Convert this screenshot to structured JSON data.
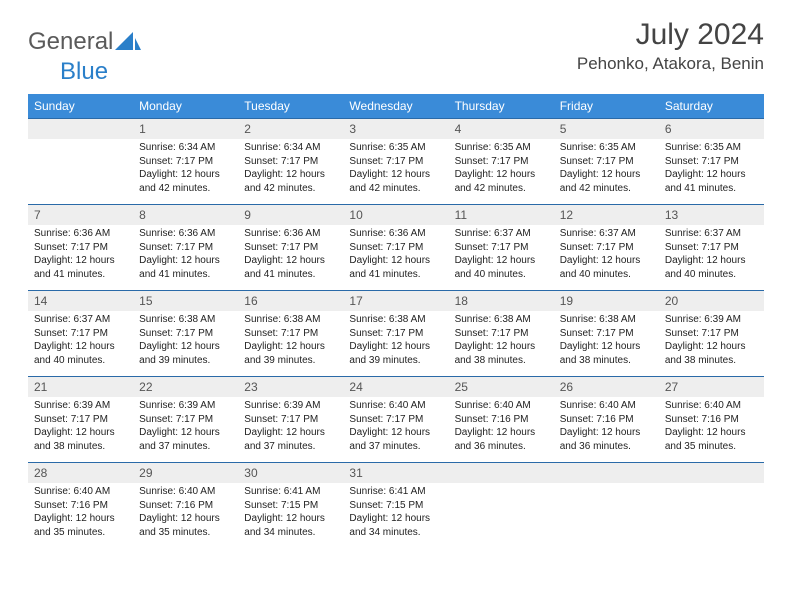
{
  "brand": {
    "part1": "General",
    "part2": "Blue"
  },
  "title": "July 2024",
  "location": "Pehonko, Atakora, Benin",
  "colors": {
    "header_bg": "#3a8bd8",
    "header_text": "#ffffff",
    "row_border": "#2a6aa8",
    "daynum_bg": "#eeeeee",
    "text": "#222222",
    "brand_grey": "#5a5a5a",
    "brand_blue": "#2a7fc9"
  },
  "weekdays": [
    "Sunday",
    "Monday",
    "Tuesday",
    "Wednesday",
    "Thursday",
    "Friday",
    "Saturday"
  ],
  "weeks": [
    [
      {
        "n": "",
        "sr": "",
        "ss": "",
        "dl": ""
      },
      {
        "n": "1",
        "sr": "Sunrise: 6:34 AM",
        "ss": "Sunset: 7:17 PM",
        "dl": "Daylight: 12 hours and 42 minutes."
      },
      {
        "n": "2",
        "sr": "Sunrise: 6:34 AM",
        "ss": "Sunset: 7:17 PM",
        "dl": "Daylight: 12 hours and 42 minutes."
      },
      {
        "n": "3",
        "sr": "Sunrise: 6:35 AM",
        "ss": "Sunset: 7:17 PM",
        "dl": "Daylight: 12 hours and 42 minutes."
      },
      {
        "n": "4",
        "sr": "Sunrise: 6:35 AM",
        "ss": "Sunset: 7:17 PM",
        "dl": "Daylight: 12 hours and 42 minutes."
      },
      {
        "n": "5",
        "sr": "Sunrise: 6:35 AM",
        "ss": "Sunset: 7:17 PM",
        "dl": "Daylight: 12 hours and 42 minutes."
      },
      {
        "n": "6",
        "sr": "Sunrise: 6:35 AM",
        "ss": "Sunset: 7:17 PM",
        "dl": "Daylight: 12 hours and 41 minutes."
      }
    ],
    [
      {
        "n": "7",
        "sr": "Sunrise: 6:36 AM",
        "ss": "Sunset: 7:17 PM",
        "dl": "Daylight: 12 hours and 41 minutes."
      },
      {
        "n": "8",
        "sr": "Sunrise: 6:36 AM",
        "ss": "Sunset: 7:17 PM",
        "dl": "Daylight: 12 hours and 41 minutes."
      },
      {
        "n": "9",
        "sr": "Sunrise: 6:36 AM",
        "ss": "Sunset: 7:17 PM",
        "dl": "Daylight: 12 hours and 41 minutes."
      },
      {
        "n": "10",
        "sr": "Sunrise: 6:36 AM",
        "ss": "Sunset: 7:17 PM",
        "dl": "Daylight: 12 hours and 41 minutes."
      },
      {
        "n": "11",
        "sr": "Sunrise: 6:37 AM",
        "ss": "Sunset: 7:17 PM",
        "dl": "Daylight: 12 hours and 40 minutes."
      },
      {
        "n": "12",
        "sr": "Sunrise: 6:37 AM",
        "ss": "Sunset: 7:17 PM",
        "dl": "Daylight: 12 hours and 40 minutes."
      },
      {
        "n": "13",
        "sr": "Sunrise: 6:37 AM",
        "ss": "Sunset: 7:17 PM",
        "dl": "Daylight: 12 hours and 40 minutes."
      }
    ],
    [
      {
        "n": "14",
        "sr": "Sunrise: 6:37 AM",
        "ss": "Sunset: 7:17 PM",
        "dl": "Daylight: 12 hours and 40 minutes."
      },
      {
        "n": "15",
        "sr": "Sunrise: 6:38 AM",
        "ss": "Sunset: 7:17 PM",
        "dl": "Daylight: 12 hours and 39 minutes."
      },
      {
        "n": "16",
        "sr": "Sunrise: 6:38 AM",
        "ss": "Sunset: 7:17 PM",
        "dl": "Daylight: 12 hours and 39 minutes."
      },
      {
        "n": "17",
        "sr": "Sunrise: 6:38 AM",
        "ss": "Sunset: 7:17 PM",
        "dl": "Daylight: 12 hours and 39 minutes."
      },
      {
        "n": "18",
        "sr": "Sunrise: 6:38 AM",
        "ss": "Sunset: 7:17 PM",
        "dl": "Daylight: 12 hours and 38 minutes."
      },
      {
        "n": "19",
        "sr": "Sunrise: 6:38 AM",
        "ss": "Sunset: 7:17 PM",
        "dl": "Daylight: 12 hours and 38 minutes."
      },
      {
        "n": "20",
        "sr": "Sunrise: 6:39 AM",
        "ss": "Sunset: 7:17 PM",
        "dl": "Daylight: 12 hours and 38 minutes."
      }
    ],
    [
      {
        "n": "21",
        "sr": "Sunrise: 6:39 AM",
        "ss": "Sunset: 7:17 PM",
        "dl": "Daylight: 12 hours and 38 minutes."
      },
      {
        "n": "22",
        "sr": "Sunrise: 6:39 AM",
        "ss": "Sunset: 7:17 PM",
        "dl": "Daylight: 12 hours and 37 minutes."
      },
      {
        "n": "23",
        "sr": "Sunrise: 6:39 AM",
        "ss": "Sunset: 7:17 PM",
        "dl": "Daylight: 12 hours and 37 minutes."
      },
      {
        "n": "24",
        "sr": "Sunrise: 6:40 AM",
        "ss": "Sunset: 7:17 PM",
        "dl": "Daylight: 12 hours and 37 minutes."
      },
      {
        "n": "25",
        "sr": "Sunrise: 6:40 AM",
        "ss": "Sunset: 7:16 PM",
        "dl": "Daylight: 12 hours and 36 minutes."
      },
      {
        "n": "26",
        "sr": "Sunrise: 6:40 AM",
        "ss": "Sunset: 7:16 PM",
        "dl": "Daylight: 12 hours and 36 minutes."
      },
      {
        "n": "27",
        "sr": "Sunrise: 6:40 AM",
        "ss": "Sunset: 7:16 PM",
        "dl": "Daylight: 12 hours and 35 minutes."
      }
    ],
    [
      {
        "n": "28",
        "sr": "Sunrise: 6:40 AM",
        "ss": "Sunset: 7:16 PM",
        "dl": "Daylight: 12 hours and 35 minutes."
      },
      {
        "n": "29",
        "sr": "Sunrise: 6:40 AM",
        "ss": "Sunset: 7:16 PM",
        "dl": "Daylight: 12 hours and 35 minutes."
      },
      {
        "n": "30",
        "sr": "Sunrise: 6:41 AM",
        "ss": "Sunset: 7:15 PM",
        "dl": "Daylight: 12 hours and 34 minutes."
      },
      {
        "n": "31",
        "sr": "Sunrise: 6:41 AM",
        "ss": "Sunset: 7:15 PM",
        "dl": "Daylight: 12 hours and 34 minutes."
      },
      {
        "n": "",
        "sr": "",
        "ss": "",
        "dl": ""
      },
      {
        "n": "",
        "sr": "",
        "ss": "",
        "dl": ""
      },
      {
        "n": "",
        "sr": "",
        "ss": "",
        "dl": ""
      }
    ]
  ]
}
